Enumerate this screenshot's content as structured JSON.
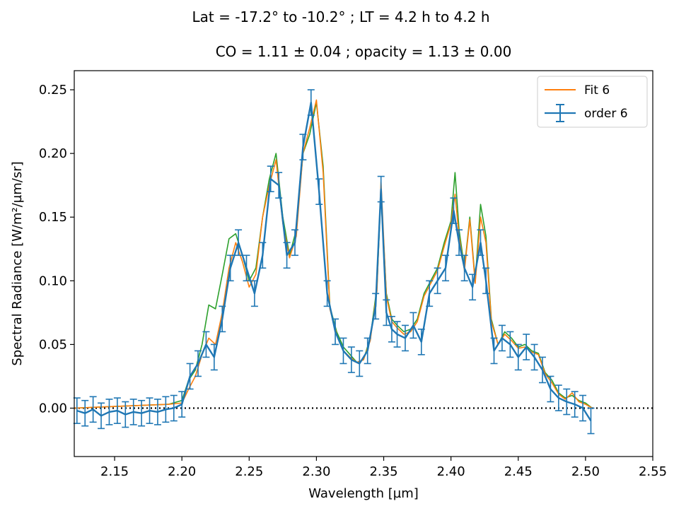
{
  "chart_data": {
    "type": "line",
    "suptitle": "Lat = -17.2° to -10.2° ; LT = 4.2 h to 4.2 h",
    "title": "CO = 1.11 ± 0.04 ; opacity = 1.13 ± 0.00",
    "xlabel": "Wavelength [µm]",
    "ylabel": "Spectral Radiance [W/m²/µm/sr]",
    "xlim": [
      2.12,
      2.55
    ],
    "ylim": [
      -0.038,
      0.265
    ],
    "xticks": [
      "2.15",
      "2.20",
      "2.25",
      "2.30",
      "2.35",
      "2.40",
      "2.45",
      "2.50",
      "2.55"
    ],
    "yticks": [
      "0.00",
      "0.05",
      "0.10",
      "0.15",
      "0.20",
      "0.25"
    ],
    "grid": false,
    "legend_position": "top-right",
    "zero_line": {
      "y": 0,
      "style": "dotted",
      "color": "#000000"
    },
    "series": [
      {
        "name": "",
        "color": "#2ca02c",
        "x": [
          2.12,
          2.19,
          2.2,
          2.205,
          2.21,
          2.215,
          2.22,
          2.225,
          2.23,
          2.235,
          2.24,
          2.245,
          2.25,
          2.255,
          2.26,
          2.265,
          2.27,
          2.275,
          2.28,
          2.285,
          2.29,
          2.295,
          2.3,
          2.305,
          2.31,
          2.315,
          2.32,
          2.325,
          2.33,
          2.335,
          2.34,
          2.345,
          2.348,
          2.352,
          2.356,
          2.36,
          2.365,
          2.37,
          2.375,
          2.38,
          2.385,
          2.39,
          2.395,
          2.4,
          2.403,
          2.406,
          2.41,
          2.414,
          2.418,
          2.422,
          2.426,
          2.43,
          2.435,
          2.44,
          2.445,
          2.45,
          2.455,
          2.46,
          2.465,
          2.47,
          2.475,
          2.48,
          2.485,
          2.49,
          2.495,
          2.5,
          2.505
        ],
        "y": [
          0.0,
          0.003,
          0.006,
          0.022,
          0.03,
          0.05,
          0.081,
          0.078,
          0.105,
          0.133,
          0.137,
          0.12,
          0.1,
          0.11,
          0.15,
          0.18,
          0.2,
          0.15,
          0.12,
          0.14,
          0.2,
          0.215,
          0.24,
          0.19,
          0.08,
          0.06,
          0.048,
          0.042,
          0.036,
          0.038,
          0.055,
          0.095,
          0.17,
          0.09,
          0.07,
          0.065,
          0.06,
          0.062,
          0.07,
          0.09,
          0.1,
          0.11,
          0.13,
          0.147,
          0.185,
          0.14,
          0.11,
          0.15,
          0.1,
          0.16,
          0.135,
          0.07,
          0.05,
          0.06,
          0.055,
          0.048,
          0.05,
          0.045,
          0.043,
          0.028,
          0.022,
          0.012,
          0.008,
          0.01,
          0.006,
          0.004,
          0.0
        ]
      },
      {
        "name": "Fit 6",
        "color": "#ff7f0e",
        "x": [
          2.12,
          2.19,
          2.2,
          2.205,
          2.21,
          2.215,
          2.22,
          2.225,
          2.23,
          2.235,
          2.24,
          2.245,
          2.25,
          2.255,
          2.26,
          2.265,
          2.27,
          2.275,
          2.28,
          2.285,
          2.29,
          2.295,
          2.3,
          2.305,
          2.31,
          2.315,
          2.32,
          2.325,
          2.33,
          2.335,
          2.34,
          2.345,
          2.348,
          2.352,
          2.356,
          2.36,
          2.365,
          2.37,
          2.375,
          2.38,
          2.385,
          2.39,
          2.395,
          2.4,
          2.403,
          2.406,
          2.41,
          2.414,
          2.418,
          2.422,
          2.426,
          2.43,
          2.435,
          2.44,
          2.445,
          2.45,
          2.455,
          2.46,
          2.465,
          2.47,
          2.475,
          2.48,
          2.485,
          2.49,
          2.495,
          2.5,
          2.505
        ],
        "y": [
          0.0,
          0.003,
          0.004,
          0.015,
          0.025,
          0.042,
          0.055,
          0.05,
          0.075,
          0.11,
          0.13,
          0.115,
          0.095,
          0.105,
          0.15,
          0.175,
          0.195,
          0.145,
          0.118,
          0.135,
          0.2,
          0.22,
          0.242,
          0.185,
          0.078,
          0.058,
          0.045,
          0.04,
          0.036,
          0.038,
          0.053,
          0.092,
          0.178,
          0.088,
          0.068,
          0.063,
          0.058,
          0.06,
          0.068,
          0.088,
          0.098,
          0.108,
          0.127,
          0.145,
          0.168,
          0.135,
          0.108,
          0.148,
          0.098,
          0.15,
          0.13,
          0.068,
          0.05,
          0.058,
          0.053,
          0.047,
          0.048,
          0.044,
          0.042,
          0.027,
          0.02,
          0.011,
          0.007,
          0.012,
          0.005,
          0.003,
          0.0
        ]
      },
      {
        "name": "order 6",
        "color": "#1f77b4",
        "errorbars": true,
        "x": [
          2.122,
          2.128,
          2.134,
          2.14,
          2.146,
          2.152,
          2.158,
          2.164,
          2.17,
          2.176,
          2.182,
          2.188,
          2.194,
          2.2,
          2.206,
          2.212,
          2.218,
          2.224,
          2.23,
          2.236,
          2.242,
          2.248,
          2.254,
          2.26,
          2.266,
          2.272,
          2.278,
          2.284,
          2.29,
          2.296,
          2.302,
          2.308,
          2.314,
          2.32,
          2.326,
          2.332,
          2.338,
          2.344,
          2.348,
          2.352,
          2.356,
          2.36,
          2.366,
          2.372,
          2.378,
          2.384,
          2.39,
          2.396,
          2.402,
          2.406,
          2.41,
          2.416,
          2.422,
          2.426,
          2.432,
          2.438,
          2.444,
          2.45,
          2.456,
          2.462,
          2.468,
          2.474,
          2.48,
          2.486,
          2.492,
          2.498,
          2.504
        ],
        "y": [
          -0.002,
          -0.004,
          -0.001,
          -0.006,
          -0.003,
          -0.002,
          -0.005,
          -0.003,
          -0.004,
          -0.002,
          -0.003,
          -0.001,
          0.0,
          0.003,
          0.025,
          0.035,
          0.05,
          0.04,
          0.07,
          0.11,
          0.13,
          0.11,
          0.09,
          0.12,
          0.18,
          0.175,
          0.12,
          0.13,
          0.205,
          0.24,
          0.17,
          0.09,
          0.06,
          0.045,
          0.038,
          0.035,
          0.045,
          0.08,
          0.172,
          0.075,
          0.062,
          0.058,
          0.055,
          0.065,
          0.052,
          0.09,
          0.1,
          0.11,
          0.155,
          0.13,
          0.11,
          0.095,
          0.13,
          0.1,
          0.045,
          0.055,
          0.05,
          0.04,
          0.048,
          0.04,
          0.03,
          0.015,
          0.008,
          0.005,
          0.003,
          0.0,
          -0.01
        ],
        "yerr": 0.01
      }
    ]
  }
}
